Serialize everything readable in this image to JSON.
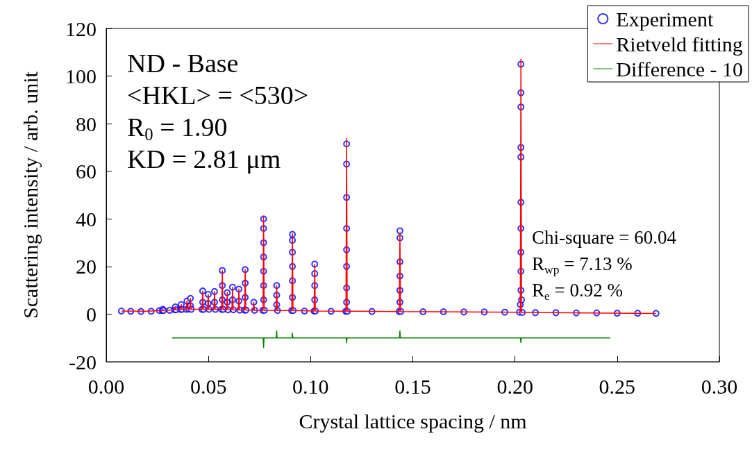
{
  "chart_data": {
    "type": "scatter",
    "xlabel": "Crystal lattice spacing / nm",
    "ylabel": "Scattering intensity / arb. unit",
    "xlim": [
      0,
      0.3
    ],
    "xticks": [
      {
        "value": 0,
        "label": "0.00"
      },
      {
        "value": 0.05,
        "label": "0.05"
      },
      {
        "value": 0.1,
        "label": "0.10"
      },
      {
        "value": 0.15,
        "label": "0.15"
      },
      {
        "value": 0.2,
        "label": "0.20"
      },
      {
        "value": 0.25,
        "label": "0.25"
      },
      {
        "value": 0.3,
        "label": "0.30"
      }
    ],
    "ylim": [
      -20,
      120
    ],
    "yticks": [
      -20,
      0,
      20,
      40,
      60,
      80,
      100,
      120
    ],
    "grid": false,
    "legend": "top right",
    "annotations": [
      "ND - Base",
      "<HKL> = <530>",
      "R$_{0}$ = 1.90",
      "KD = 2.81 μm",
      "Chi-square = 60.04",
      "R$_{wp}$ = 7.13 %",
      "R$_{e}$ = 0.92 %"
    ],
    "series": [
      {
        "name": "Experiment",
        "marker": "circle",
        "color": "#0000ff",
        "x": [
          0.0074,
          0.012,
          0.017,
          0.022,
          0.026,
          0.0274,
          0.0277,
          0.028,
          0.031,
          0.0335,
          0.0338,
          0.0341,
          0.0364,
          0.0367,
          0.037,
          0.0392,
          0.0395,
          0.0403,
          0.0412,
          0.0412,
          0.0416,
          0.0468,
          0.0472,
          0.0472,
          0.0476,
          0.0499,
          0.0499,
          0.0503,
          0.053,
          0.053,
          0.0534,
          0.0564,
          0.0568,
          0.0568,
          0.0568,
          0.0572,
          0.0592,
          0.0592,
          0.0596,
          0.0618,
          0.0618,
          0.0622,
          0.0649,
          0.0649,
          0.0653,
          0.0676,
          0.068,
          0.068,
          0.068,
          0.0684,
          0.0722,
          0.0726,
          0.0766,
          0.077,
          0.077,
          0.077,
          0.077,
          0.077,
          0.077,
          0.077,
          0.0774,
          0.0834,
          0.0834,
          0.0834,
          0.0838,
          0.0907,
          0.0911,
          0.0911,
          0.0911,
          0.0911,
          0.0911,
          0.0911,
          0.0915,
          0.097,
          0.1017,
          0.102,
          0.102,
          0.102,
          0.102,
          0.1023,
          0.11,
          0.1172,
          0.1176,
          0.1176,
          0.1176,
          0.1176,
          0.1176,
          0.1176,
          0.1176,
          0.1176,
          0.118,
          0.13,
          0.1433,
          0.1437,
          0.1437,
          0.1437,
          0.1437,
          0.1437,
          0.1437,
          0.1441,
          0.155,
          0.165,
          0.175,
          0.185,
          0.195,
          0.2022,
          0.2026,
          0.2029,
          0.2029,
          0.2029,
          0.2029,
          0.2029,
          0.2029,
          0.2029,
          0.2029,
          0.2029,
          0.2029,
          0.2032,
          0.2036,
          0.21,
          0.22,
          0.23,
          0.24,
          0.25,
          0.26,
          0.269
        ],
        "values": [
          1.3,
          1.2,
          1.1,
          1.2,
          1.5,
          1.5,
          2,
          1.5,
          1.6,
          1.8,
          3,
          1.8,
          2,
          4,
          2,
          2,
          5.5,
          2.2,
          6.6,
          3.5,
          2,
          2,
          5,
          9.7,
          2,
          4.5,
          8.3,
          2,
          5,
          9.5,
          2,
          2,
          6,
          12,
          18.3,
          2,
          5,
          9,
          1.8,
          6,
          11.3,
          1.8,
          5.5,
          10.5,
          1.7,
          1.7,
          7,
          13,
          18.7,
          1.7,
          5,
          1.6,
          1.6,
          6,
          12,
          18,
          24,
          30,
          36,
          40,
          1.6,
          4,
          8,
          12,
          1.5,
          1.5,
          7,
          14,
          20,
          26,
          31,
          33.5,
          1.5,
          1.3,
          1.3,
          6,
          12,
          17,
          21,
          1.3,
          1.2,
          1.2,
          5,
          11,
          20,
          27,
          36,
          49,
          63,
          71.5,
          1.2,
          1.1,
          1.1,
          5,
          10,
          16,
          22,
          32,
          35,
          1.1,
          1,
          1,
          0.9,
          0.9,
          0.8,
          0.8,
          4,
          10,
          18,
          26,
          36,
          47,
          66,
          70,
          87,
          93,
          105,
          6,
          0.7,
          0.6,
          0.6,
          0.5,
          0.5,
          0.4,
          0.4,
          0.3
        ]
      },
      {
        "name": "Rietveld fitting",
        "type": "line",
        "color": "#ff0000",
        "x": [
          0.0074,
          0.02,
          0.0274,
          0.0277,
          0.028,
          0.0335,
          0.0338,
          0.0341,
          0.0364,
          0.0367,
          0.037,
          0.0392,
          0.0395,
          0.0398,
          0.0409,
          0.0412,
          0.0415,
          0.0469,
          0.0472,
          0.0475,
          0.0496,
          0.0499,
          0.0502,
          0.0527,
          0.053,
          0.0533,
          0.0565,
          0.0568,
          0.0571,
          0.0589,
          0.0592,
          0.0595,
          0.0615,
          0.0618,
          0.0621,
          0.0646,
          0.0649,
          0.0652,
          0.0677,
          0.068,
          0.0683,
          0.0719,
          0.0722,
          0.0725,
          0.0767,
          0.077,
          0.0773,
          0.0831,
          0.0834,
          0.0837,
          0.0908,
          0.0911,
          0.0914,
          0.1017,
          0.102,
          0.1023,
          0.1173,
          0.1176,
          0.1179,
          0.1434,
          0.1437,
          0.144,
          0.2026,
          0.2029,
          0.2032,
          0.235,
          0.269
        ],
        "values": [
          1.3,
          1.2,
          1.5,
          2,
          1.5,
          1.8,
          3,
          1.8,
          2,
          4,
          2,
          2,
          5.5,
          2.2,
          2.2,
          6.6,
          2,
          2,
          9.7,
          2,
          2,
          8.3,
          2,
          2,
          9.5,
          2,
          2,
          18.3,
          2,
          1.8,
          9,
          1.8,
          1.8,
          11.3,
          1.8,
          1.7,
          10.5,
          1.7,
          1.7,
          18.7,
          1.7,
          1.6,
          5,
          1.6,
          1.6,
          41,
          1.6,
          1.5,
          12,
          1.5,
          1.5,
          33.8,
          1.5,
          1.3,
          21,
          1.3,
          1.2,
          73.8,
          1.2,
          1.1,
          34,
          1.1,
          0.8,
          107,
          0.7,
          0.5,
          0.3
        ]
      },
      {
        "name": "Difference - 10",
        "type": "line",
        "color": "#008000",
        "x": [
          0.0322,
          0.05,
          0.0768,
          0.077,
          0.0772,
          0.0832,
          0.0834,
          0.0836,
          0.0909,
          0.0911,
          0.0913,
          0.1174,
          0.1176,
          0.1178,
          0.1435,
          0.1437,
          0.1439,
          0.2027,
          0.2029,
          0.2031,
          0.2466
        ],
        "values": [
          -10,
          -10,
          -10,
          -14,
          -10,
          -10,
          -7,
          -10,
          -10,
          -8,
          -10,
          -10,
          -12,
          -10,
          -10,
          -7,
          -10,
          -10,
          -12,
          -10,
          -10
        ]
      }
    ]
  }
}
